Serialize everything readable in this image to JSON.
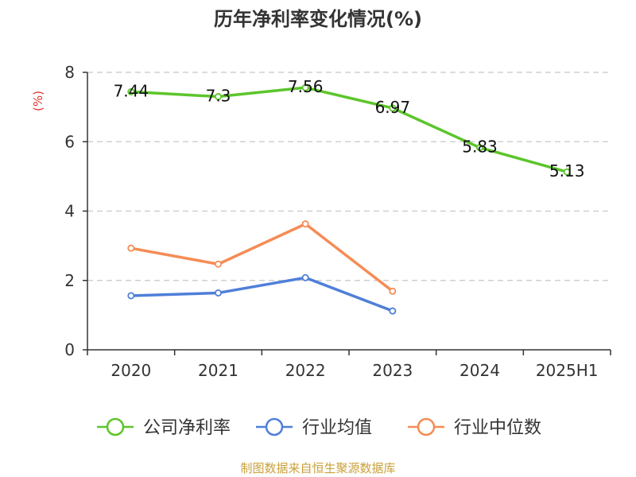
{
  "chart_data": {
    "type": "line",
    "title": "历年净利率变化情况(%)",
    "ylabel": "(%)",
    "categories": [
      "2020",
      "2021",
      "2022",
      "2023",
      "2024",
      "2025H1"
    ],
    "ylim": [
      0,
      8
    ],
    "yticks": [
      "0",
      "2",
      "4",
      "6",
      "8"
    ],
    "grid": "horizontal-dashed",
    "legend_position": "bottom",
    "series": [
      {
        "name": "公司净利率",
        "color": "#5cc52b",
        "values": [
          7.44,
          7.3,
          7.56,
          6.97,
          5.83,
          5.13
        ],
        "labels": [
          "7.44",
          "7.3",
          "7.56",
          "6.97",
          "5.83",
          "5.13"
        ]
      },
      {
        "name": "行业均值",
        "color": "#4f7fd9",
        "values": [
          1.56,
          1.64,
          2.08,
          1.12,
          null,
          null
        ]
      },
      {
        "name": "行业中位数",
        "color": "#f58c55",
        "values": [
          2.93,
          2.47,
          3.63,
          1.69,
          null,
          null
        ]
      }
    ]
  },
  "source": "制图数据来自恒生聚源数据库"
}
